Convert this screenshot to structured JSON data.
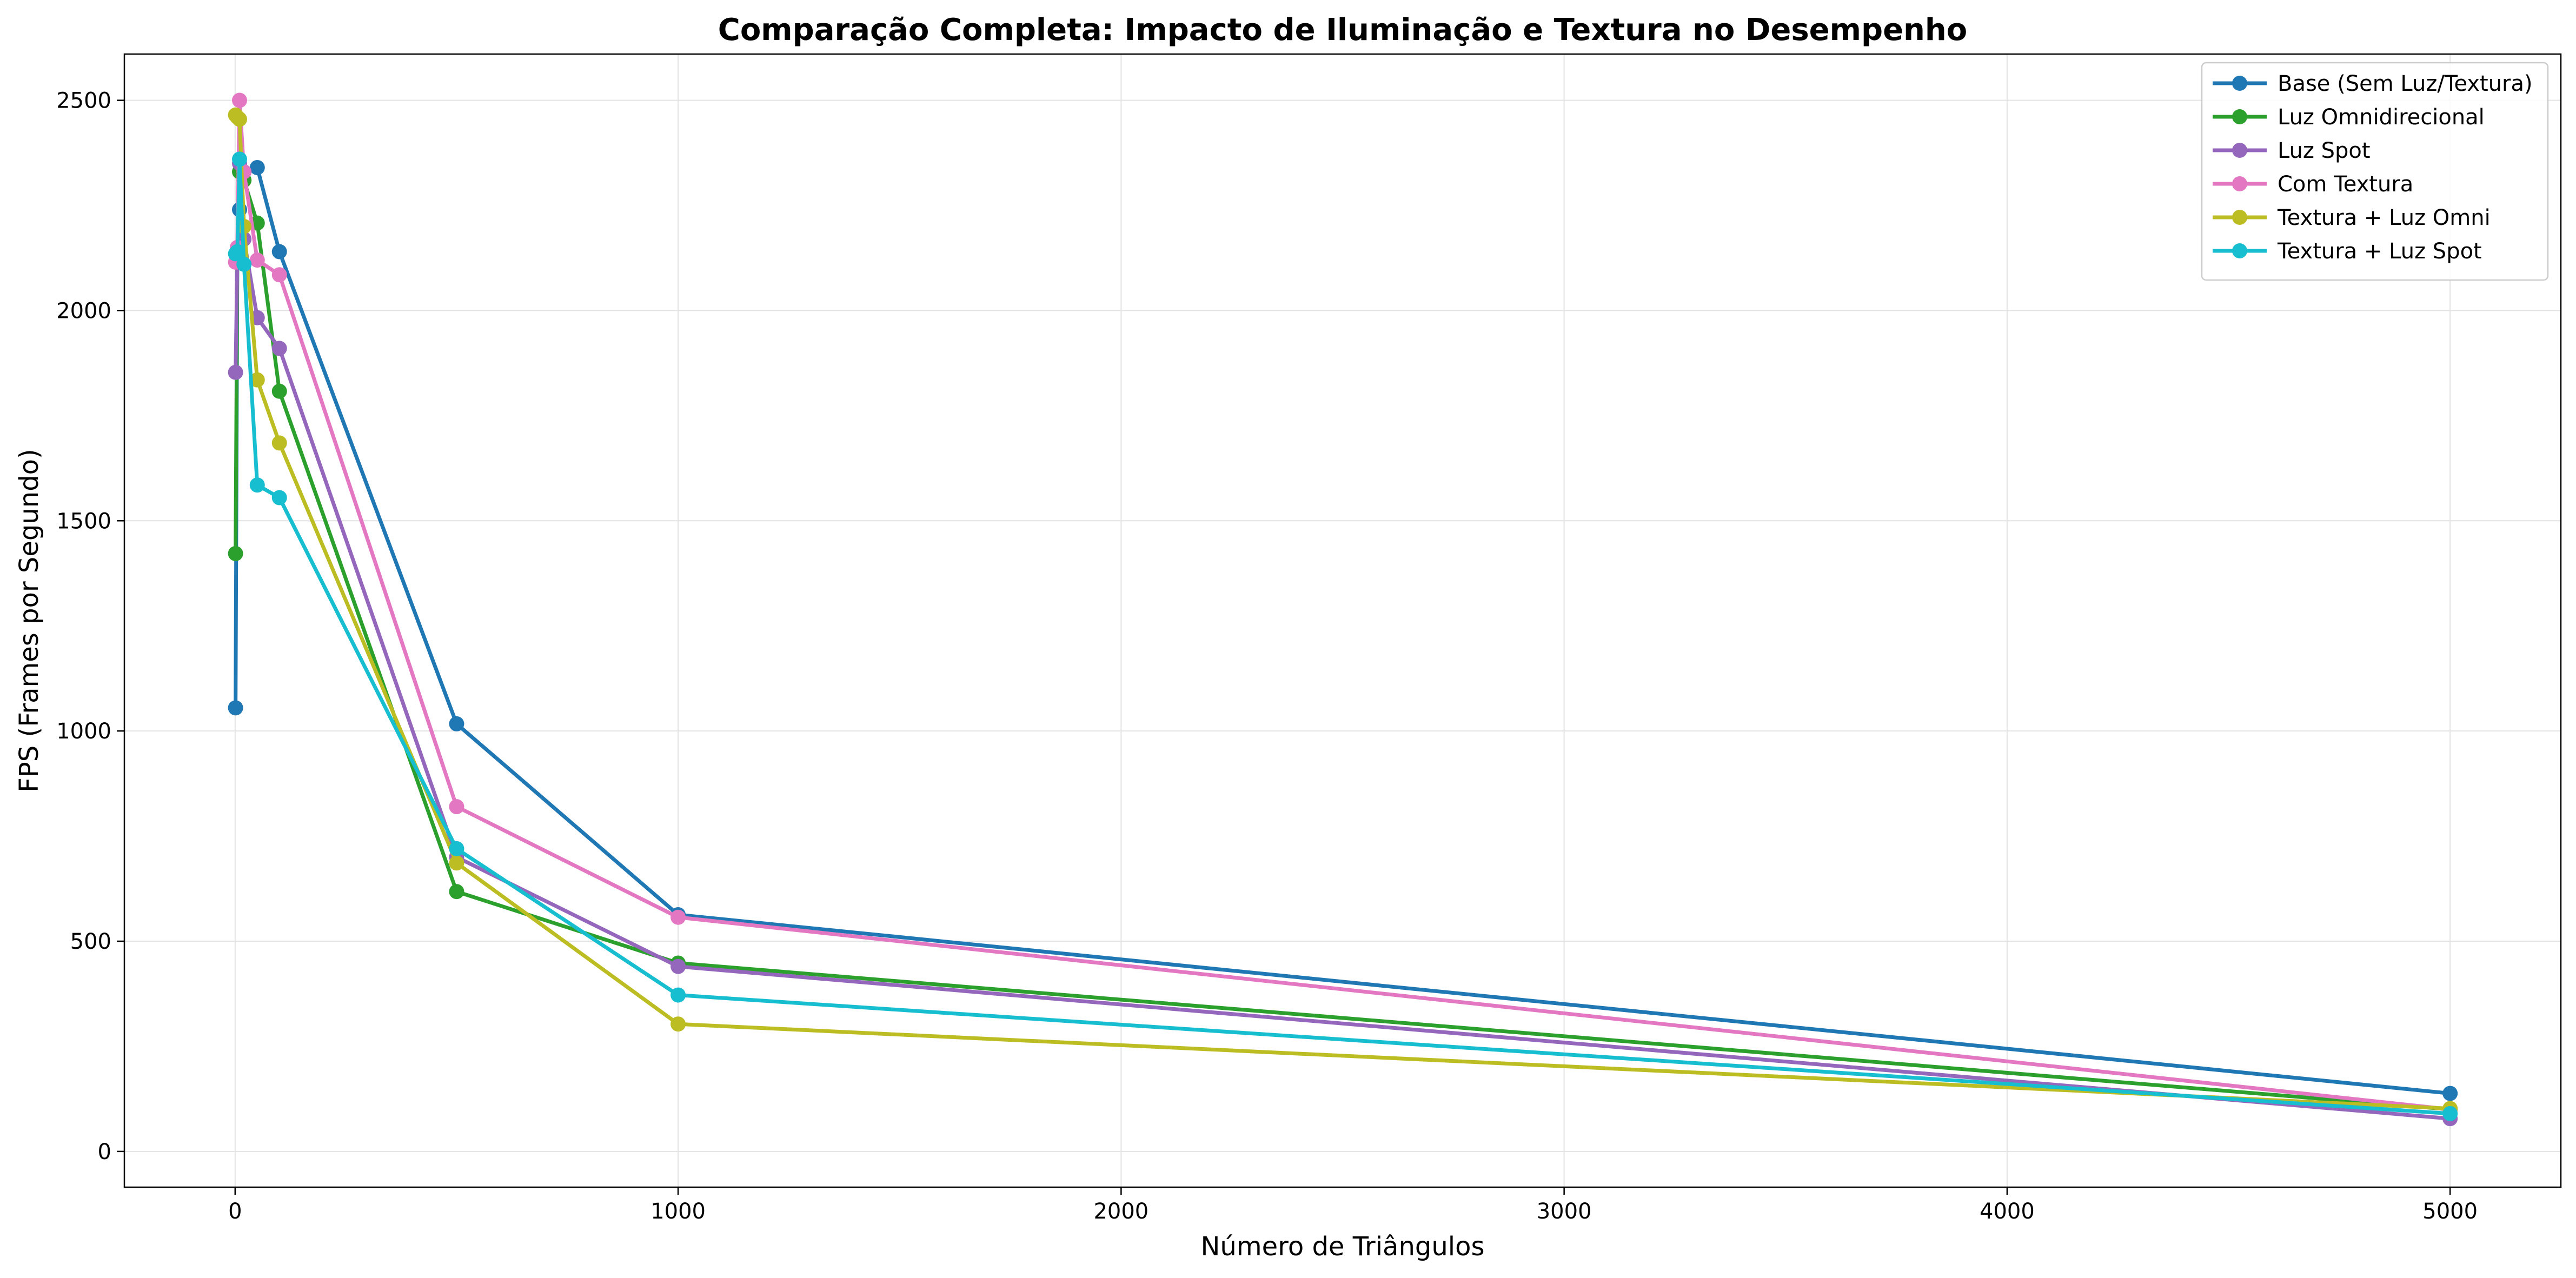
{
  "chart_data": {
    "type": "line",
    "title": "Comparação Completa: Impacto de Iluminação e Textura no Desempenho",
    "xlabel": "Número de Triângulos",
    "ylabel": "FPS (Frames por Segundo)",
    "xlim": [
      -250,
      5250
    ],
    "ylim": [
      -85,
      2610
    ],
    "xticks": [
      0,
      1000,
      2000,
      3000,
      4000,
      5000
    ],
    "yticks": [
      0,
      500,
      1000,
      1500,
      2000,
      2500
    ],
    "grid": true,
    "legend_position": "top-right",
    "x": [
      1,
      5,
      10,
      20,
      50,
      100,
      500,
      1000,
      5000
    ],
    "series": [
      {
        "name": "Base (Sem Luz/Textura)",
        "color": "#1f77b4",
        "values": [
          1055,
          2130,
          2240,
          2330,
          2340,
          2140,
          1017,
          563,
          138
        ]
      },
      {
        "name": "Luz Omnidirecional",
        "color": "#2ca02c",
        "values": [
          1422,
          2135,
          2330,
          2310,
          2208,
          1808,
          618,
          448,
          100
        ]
      },
      {
        "name": "Luz Spot",
        "color": "#9467bd",
        "values": [
          1853,
          2118,
          2350,
          2170,
          1983,
          1910,
          700,
          440,
          78
        ]
      },
      {
        "name": "Com Textura",
        "color": "#e377c2",
        "values": [
          2115,
          2150,
          2500,
          2330,
          2120,
          2085,
          820,
          557,
          100
        ]
      },
      {
        "name": "Textura + Luz Omni",
        "color": "#bcbd22",
        "values": [
          2465,
          2460,
          2455,
          2200,
          1835,
          1685,
          686,
          303,
          102
        ]
      },
      {
        "name": "Textura + Luz Spot",
        "color": "#17becf",
        "values": [
          2135,
          2140,
          2360,
          2110,
          1585,
          1555,
          720,
          372,
          90
        ]
      }
    ]
  }
}
